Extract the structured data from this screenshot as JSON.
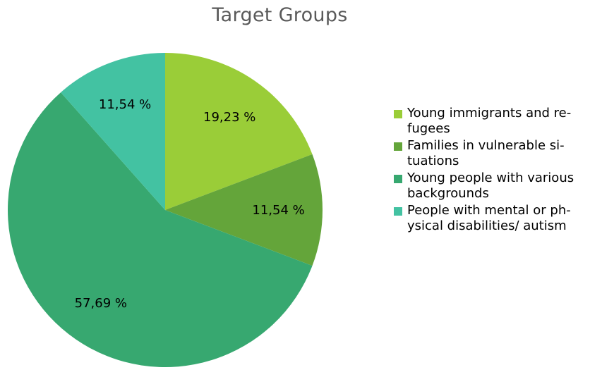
{
  "chart_data": {
    "type": "pie",
    "title": "Target Groups",
    "slices": [
      {
        "name": "Young immigrants and re-\nfugees",
        "value": 19.23,
        "label": "19,23 %",
        "color": "#9ACD38"
      },
      {
        "name": "Families in vulnerable si-\ntuations",
        "value": 11.54,
        "label": "11,54 %",
        "color": "#64A53A"
      },
      {
        "name": "Young people with various\nbackgrounds",
        "value": 57.69,
        "label": "57,69 %",
        "color": "#37A870"
      },
      {
        "name": "People with mental or ph-\nysical disabilities/ autism",
        "value": 11.54,
        "label": "11,54 %",
        "color": "#43C2A2"
      }
    ],
    "start_angle_deg": 0,
    "direction": "clockwise",
    "legend_position": "right"
  }
}
